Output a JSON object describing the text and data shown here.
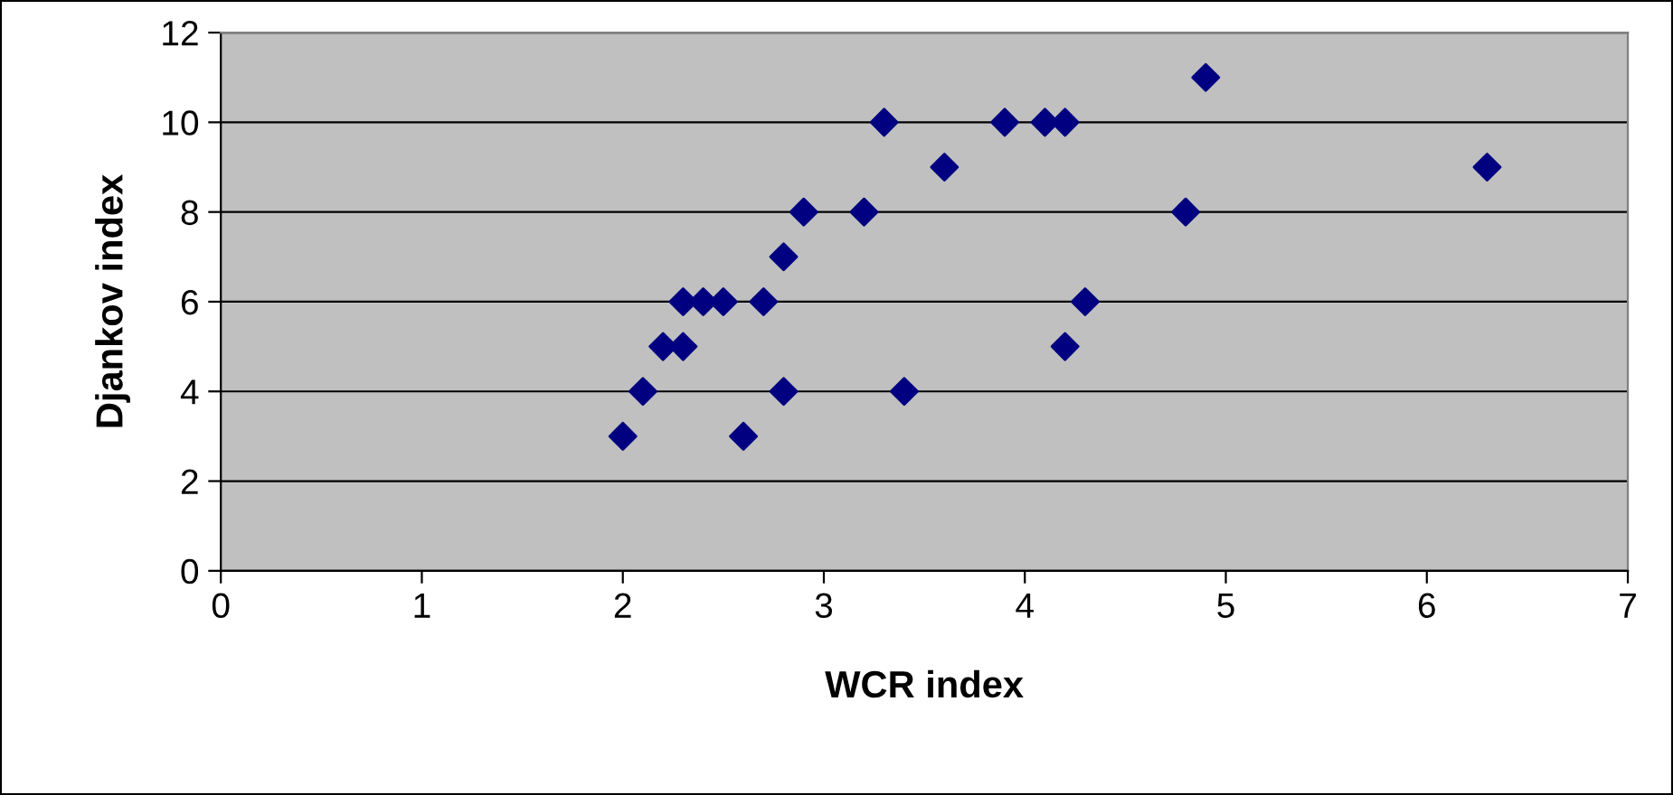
{
  "chart_data": {
    "type": "scatter",
    "xlabel": "WCR index",
    "ylabel": "Djankov index",
    "x": [
      2.0,
      2.1,
      2.2,
      2.3,
      2.3,
      2.4,
      2.5,
      2.6,
      2.7,
      2.8,
      2.8,
      2.9,
      3.2,
      3.3,
      3.4,
      3.6,
      3.9,
      4.1,
      4.2,
      4.2,
      4.3,
      4.8,
      4.9,
      6.3
    ],
    "series": [
      {
        "color": "#000080",
        "values": [
          3,
          4,
          5,
          5,
          6,
          6,
          6,
          3,
          6,
          7,
          4,
          8,
          8,
          10,
          4,
          9,
          10,
          10,
          10,
          5,
          6,
          8,
          11,
          9
        ]
      }
    ],
    "xlim": [
      0,
      7
    ],
    "xticks": [
      0,
      1,
      2,
      3,
      4,
      5,
      6,
      7
    ],
    "ylim": [
      0,
      12
    ],
    "yticks": [
      0,
      2,
      4,
      6,
      8,
      10,
      12
    ],
    "grid": "y",
    "marker": "diamond",
    "legend": false
  }
}
